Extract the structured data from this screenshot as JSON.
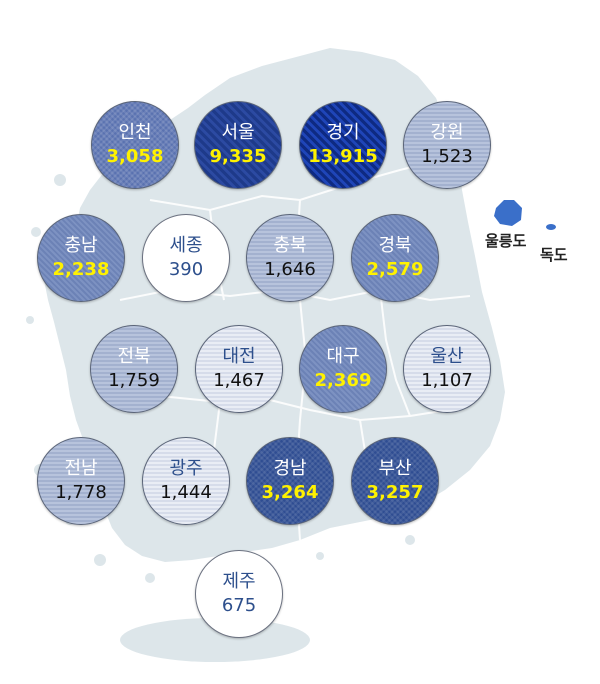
{
  "map": {
    "regions": [
      {
        "id": "incheon",
        "name": "인천",
        "value": "3,058",
        "level": 4
      },
      {
        "id": "seoul",
        "name": "서울",
        "value": "9,335",
        "level": 6
      },
      {
        "id": "gyeonggi",
        "name": "경기",
        "value": "13,915",
        "level": 7
      },
      {
        "id": "gangwon",
        "name": "강원",
        "value": "1,523",
        "level": 2
      },
      {
        "id": "chungnam",
        "name": "충남",
        "value": "2,238",
        "level": 3
      },
      {
        "id": "sejong",
        "name": "세종",
        "value": "390",
        "level": 0
      },
      {
        "id": "chungbuk",
        "name": "충북",
        "value": "1,646",
        "level": 2
      },
      {
        "id": "gyeongbuk",
        "name": "경북",
        "value": "2,579",
        "level": 3
      },
      {
        "id": "jeonbuk",
        "name": "전북",
        "value": "1,759",
        "level": 2
      },
      {
        "id": "daejeon",
        "name": "대전",
        "value": "1,467",
        "level": 1
      },
      {
        "id": "daegu",
        "name": "대구",
        "value": "2,369",
        "level": 3
      },
      {
        "id": "ulsan",
        "name": "울산",
        "value": "1,107",
        "level": 1
      },
      {
        "id": "jeonnam",
        "name": "전남",
        "value": "1,778",
        "level": 2
      },
      {
        "id": "gwangju",
        "name": "광주",
        "value": "1,444",
        "level": 1
      },
      {
        "id": "gyeongnam",
        "name": "경남",
        "value": "3,264",
        "level": 5
      },
      {
        "id": "busan",
        "name": "부산",
        "value": "3,257",
        "level": 5
      },
      {
        "id": "jeju",
        "name": "제주",
        "value": "675",
        "level": 0
      }
    ],
    "islands": {
      "ulleungdo": "울릉도",
      "dokdo": "독도"
    },
    "colors": {
      "land": "#dde6ea",
      "islands": "#3a6fc9"
    }
  }
}
